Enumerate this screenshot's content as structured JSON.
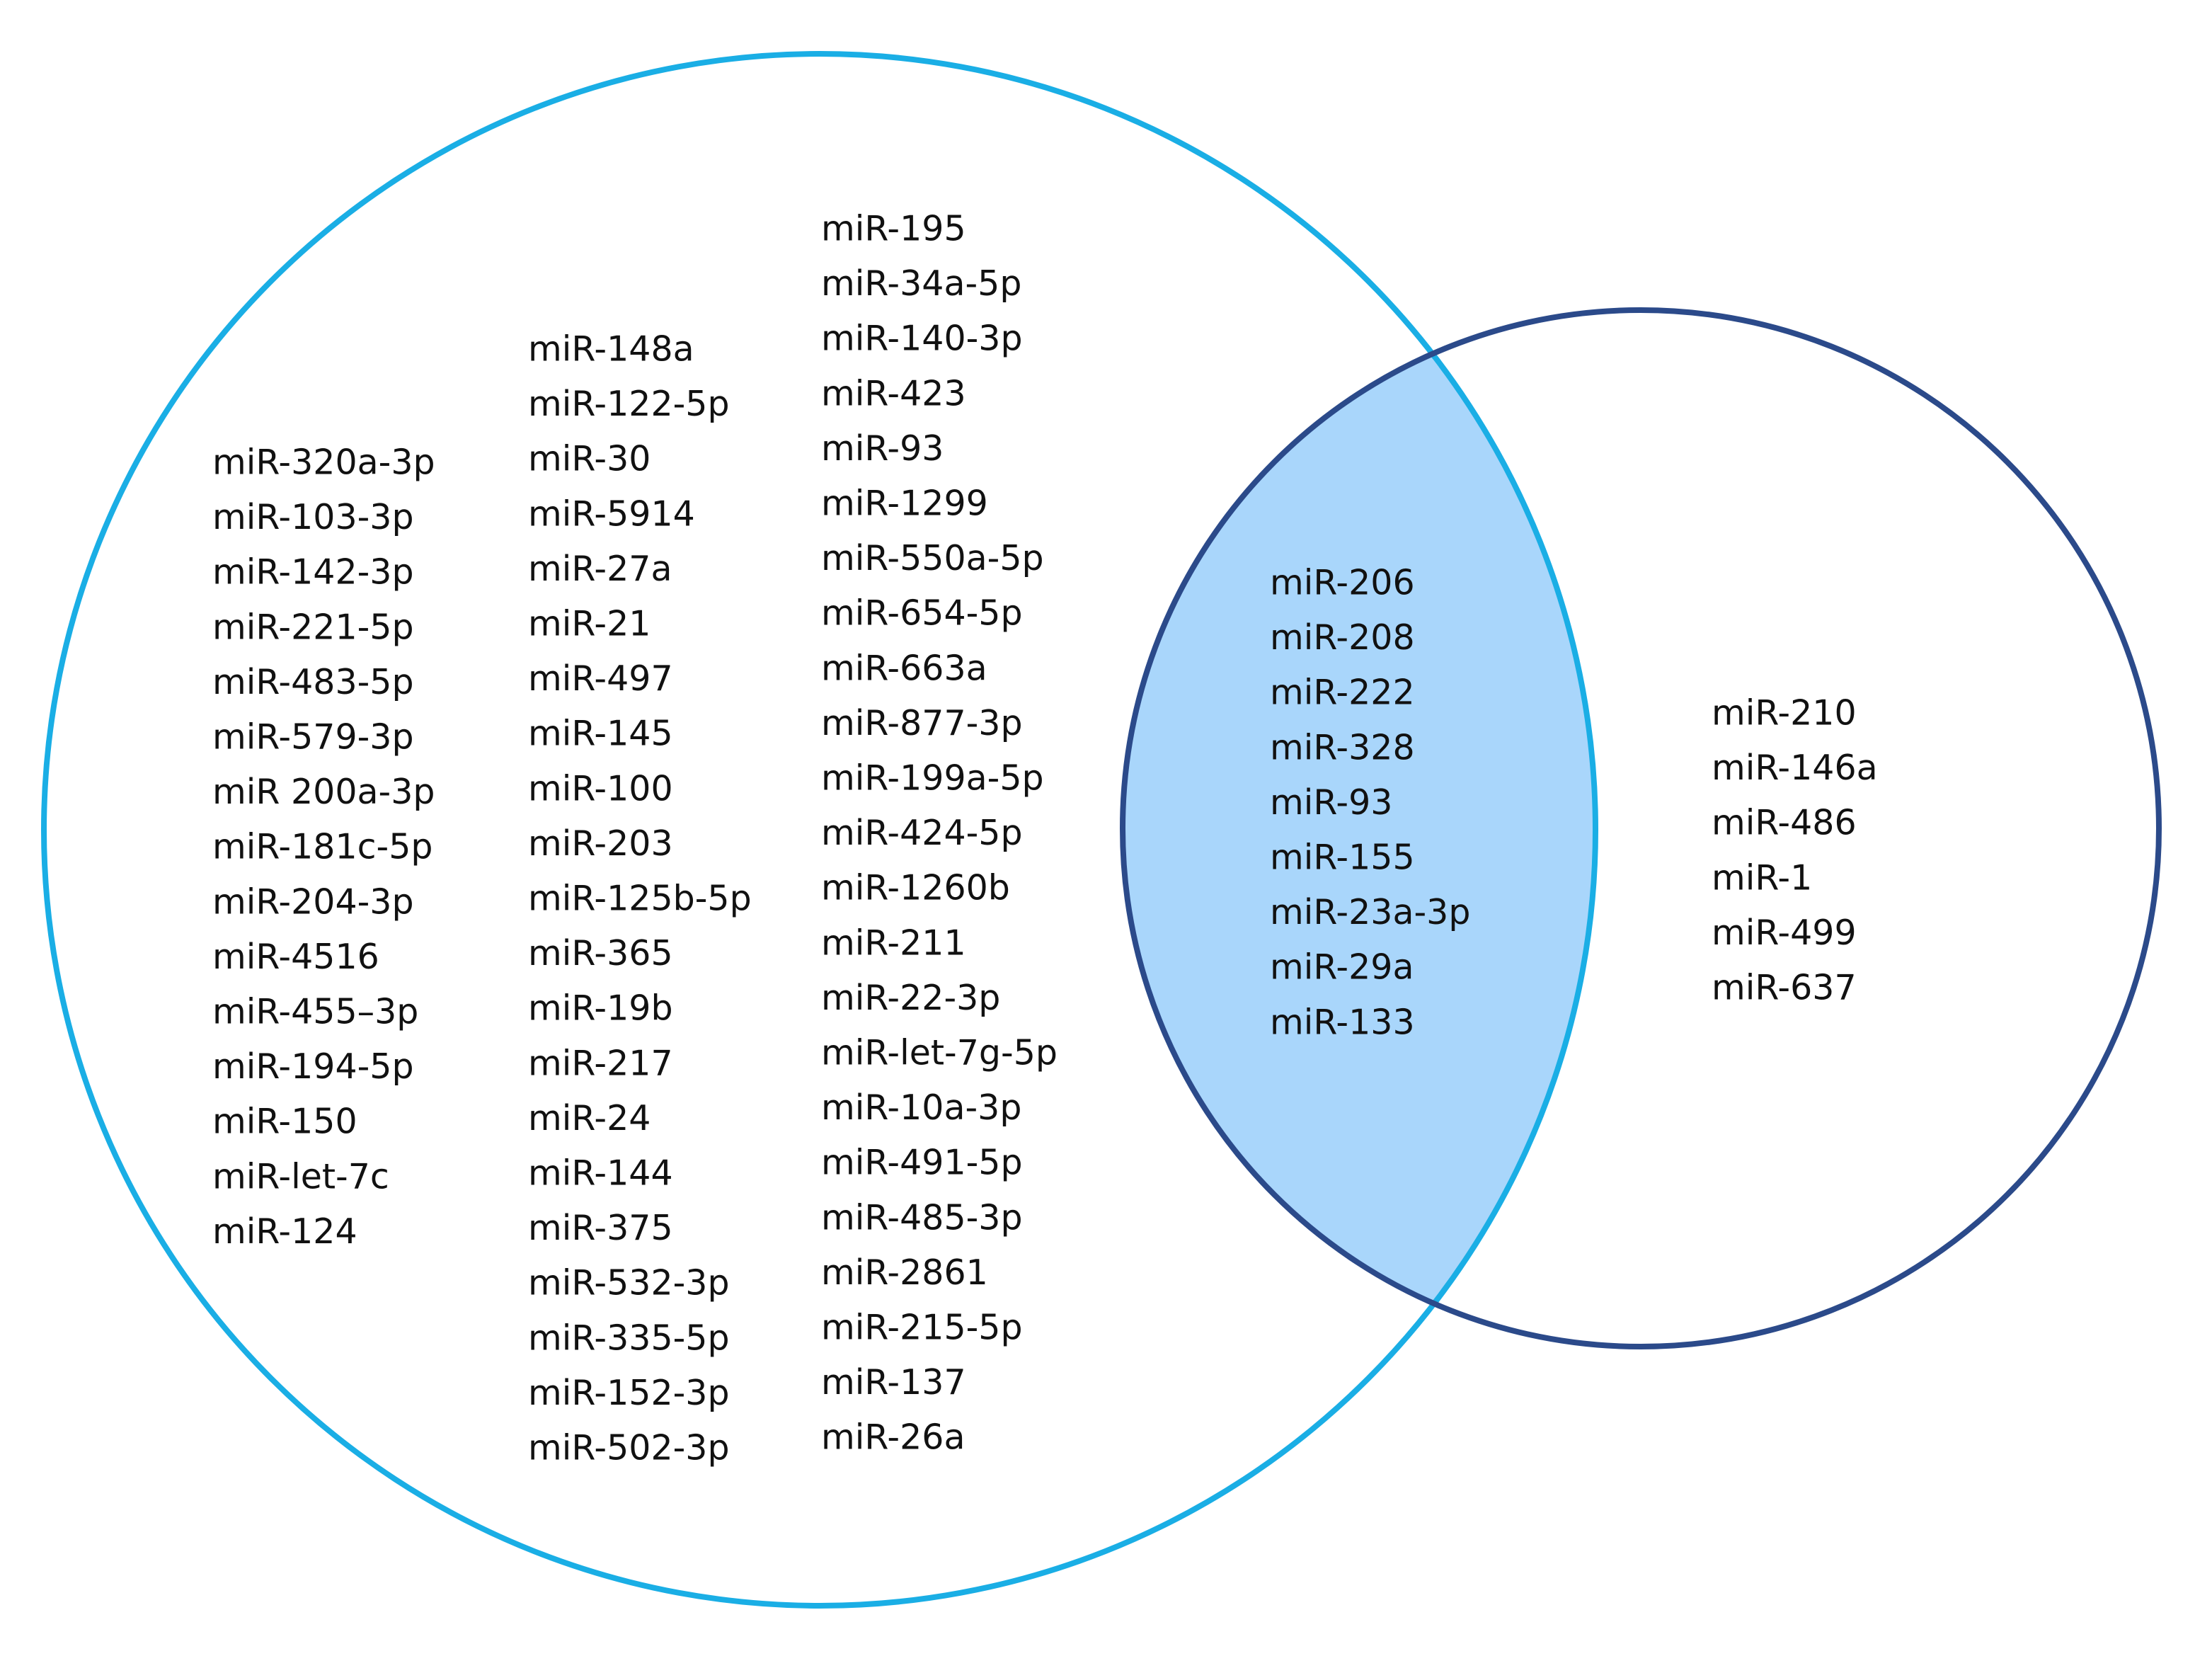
{
  "regions": [
    {
      "items": [
        "miR-320a-3p",
        "miR-103-3p",
        "miR-142-3p",
        "miR-221-5p",
        "miR-483-5p",
        "miR-579-3p",
        "miR 200a-3p",
        "miR-181c-5p",
        "miR-204-3p",
        "miR-4516",
        "miR-455–3p",
        "miR-194-5p",
        "miR-150",
        "miR-let-7c",
        "miR-124"
      ]
    },
    {
      "items": [
        "miR-148a",
        "miR-122-5p",
        "miR-30",
        "miR-5914",
        "miR-27a",
        "miR-21",
        "miR-497",
        "miR-145",
        "miR-100",
        "miR-203",
        "miR-125b-5p",
        "miR-365",
        "miR-19b",
        "miR-217",
        "miR-24",
        "miR-144",
        "miR-375",
        "miR-532-3p",
        "miR-335-5p",
        "miR-152-3p",
        "miR-502-3p"
      ]
    },
    {
      "items": [
        "miR-195",
        "miR-34a-5p",
        "miR-140-3p",
        "miR-423",
        "miR-93",
        "miR-1299",
        "miR-550a-5p",
        "miR-654-5p",
        "miR-663a",
        "miR-877-3p",
        "miR-199a-5p",
        "miR-424-5p",
        "miR-1260b",
        "miR-211",
        "miR-22-3p",
        "miR-let-7g-5p",
        "miR-10a-3p",
        "miR-491-5p",
        "miR-485-3p",
        "miR-2861",
        "miR-215-5p",
        "miR-137",
        "miR-26a"
      ]
    },
    {
      "items": [
        "miR-206",
        "miR-208",
        "miR-222",
        "miR-328",
        "miR-93",
        "miR-155",
        "miR-23a-3p",
        "miR-29a",
        "miR-133"
      ]
    },
    {
      "items": [
        "miR-210",
        "miR-146a",
        "miR-486",
        "miR-1",
        "miR-499",
        "miR-637"
      ]
    }
  ]
}
